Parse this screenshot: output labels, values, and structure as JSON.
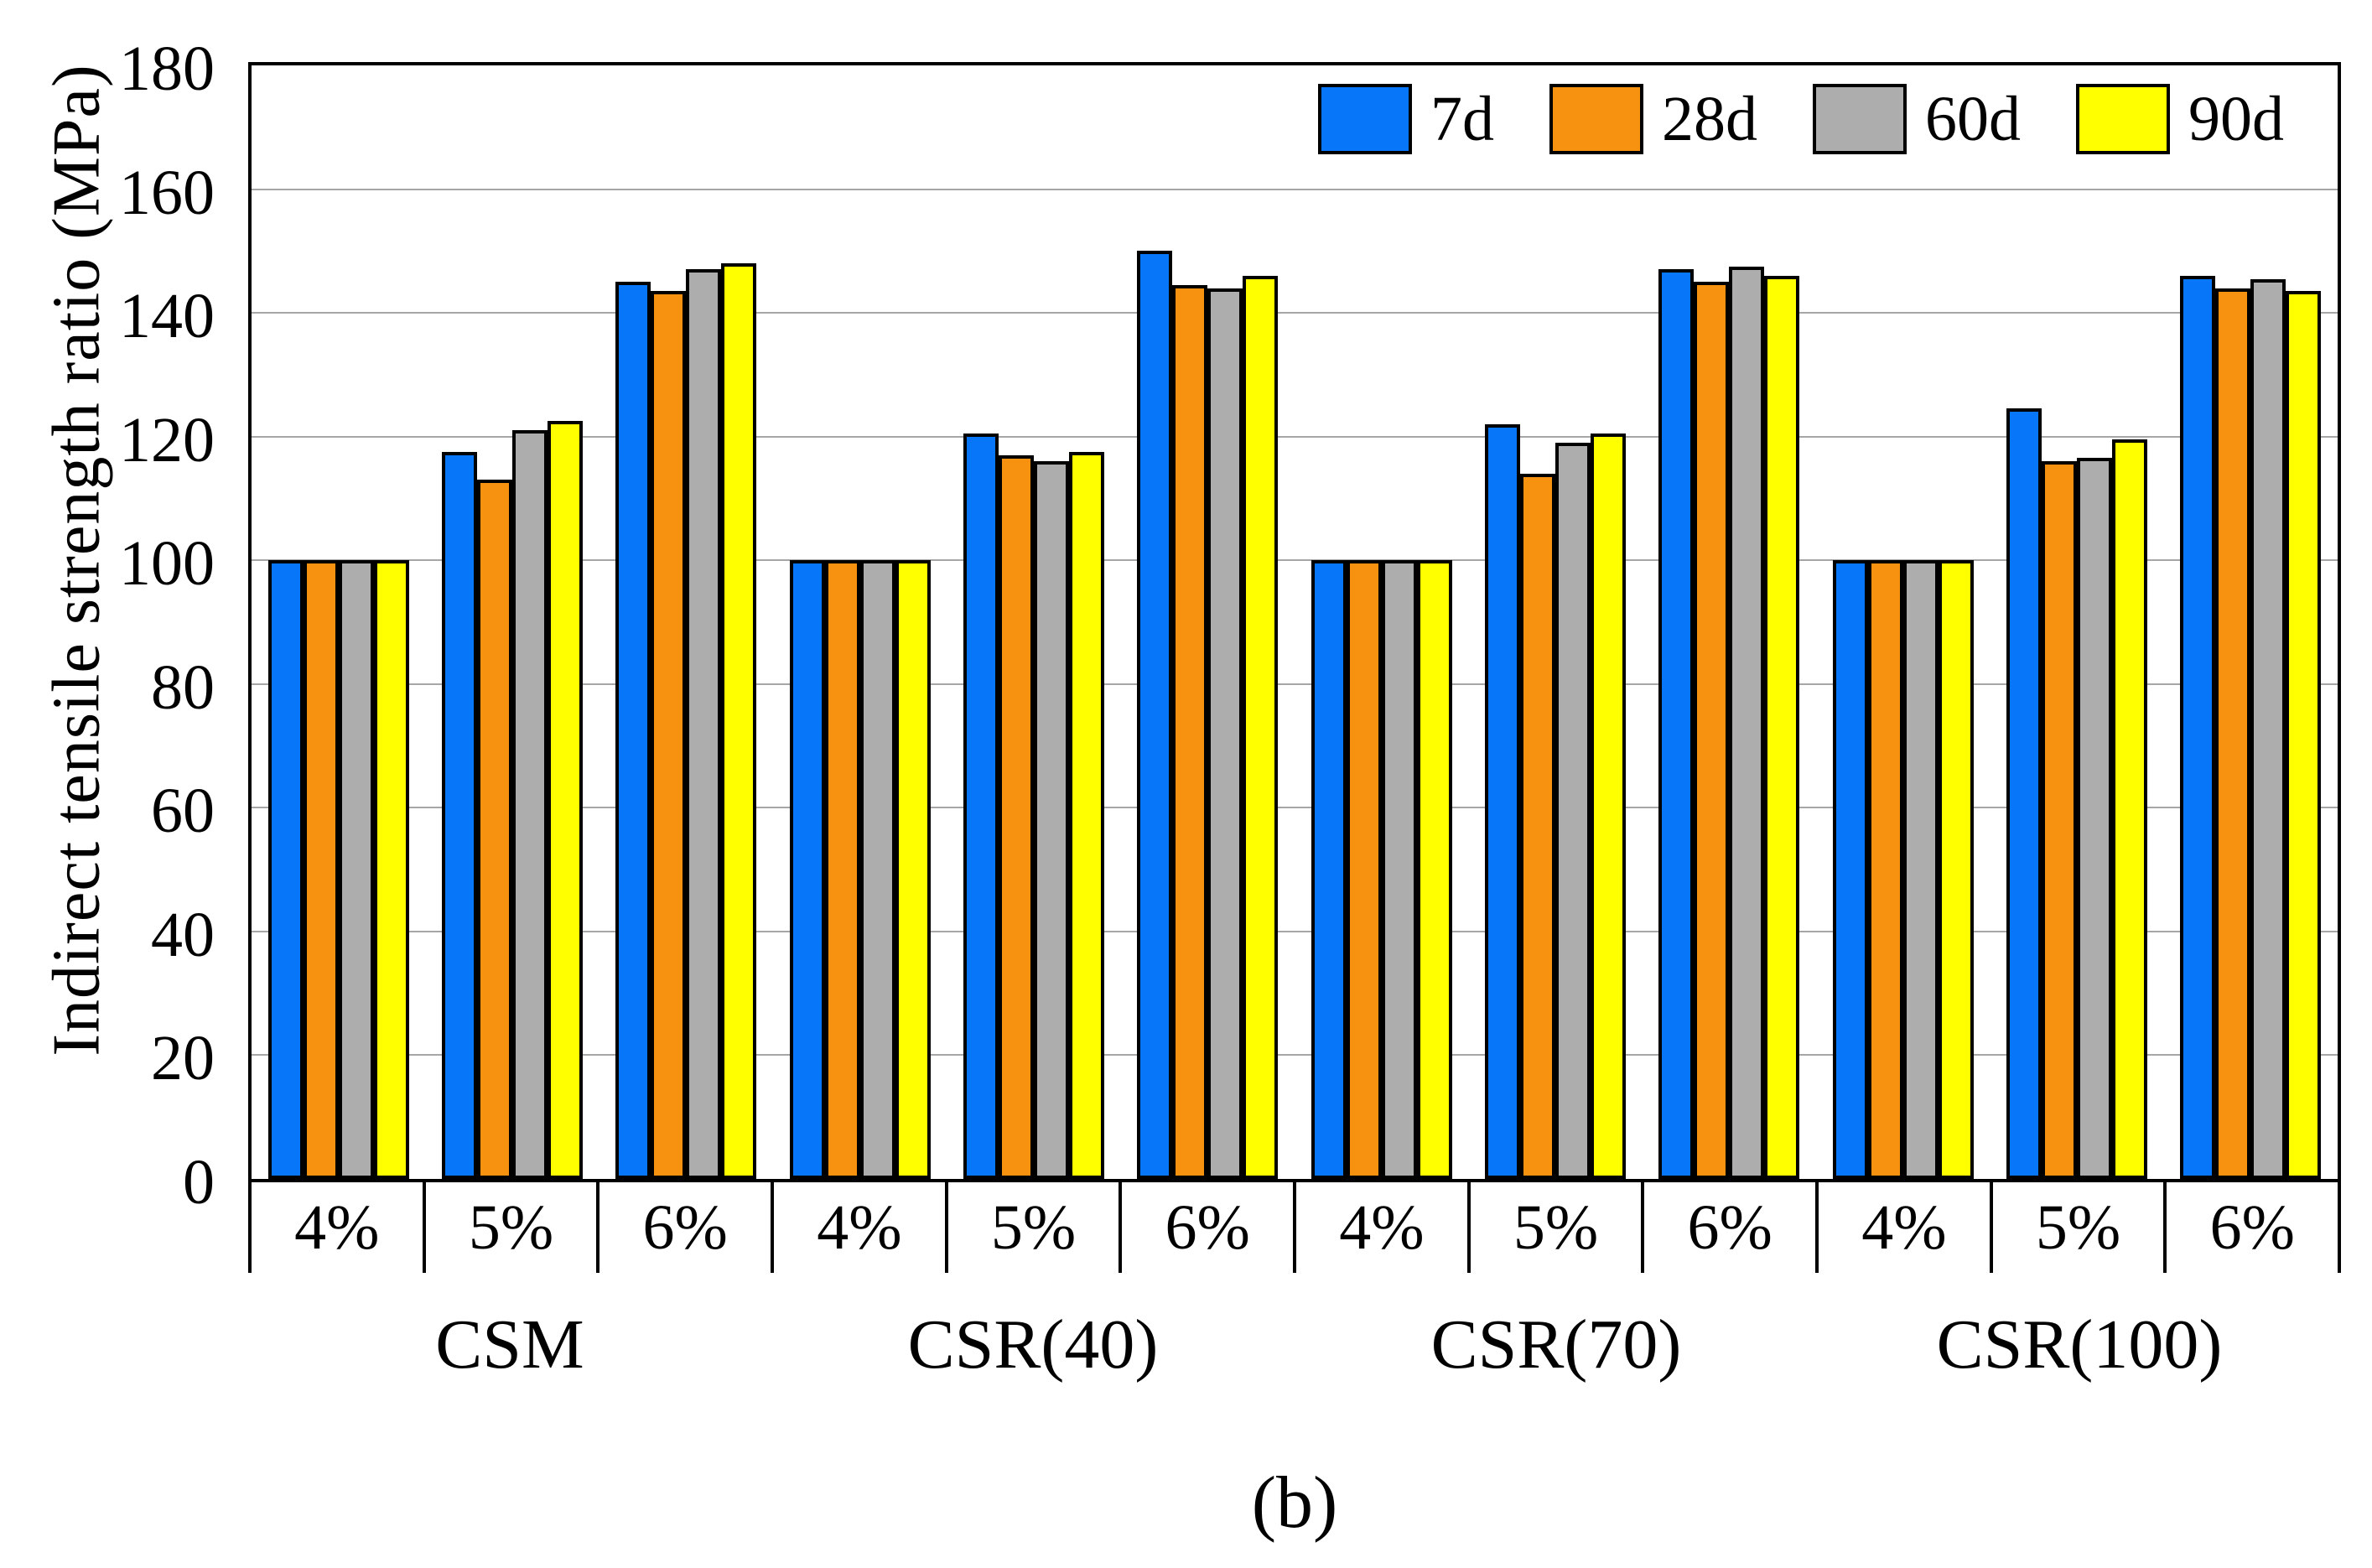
{
  "chart_data": {
    "type": "bar",
    "title": "",
    "ylabel": "Indirect tensile strength ratio (MPa)",
    "xlabel": "",
    "ylim": [
      0,
      180
    ],
    "yticks": [
      0,
      20,
      40,
      60,
      80,
      100,
      120,
      140,
      160,
      180
    ],
    "grid": "horizontal",
    "legend_position": "top-right-inside",
    "caption": "(b)",
    "x_axis": {
      "groups": [
        {
          "label": "CSM",
          "subcategories": [
            "4%",
            "5%",
            "6%"
          ]
        },
        {
          "label": "CSR(40)",
          "subcategories": [
            "4%",
            "5%",
            "6%"
          ]
        },
        {
          "label": "CSR(70)",
          "subcategories": [
            "4%",
            "5%",
            "6%"
          ]
        },
        {
          "label": "CSR(100)",
          "subcategories": [
            "4%",
            "5%",
            "6%"
          ]
        }
      ]
    },
    "categories": [
      "CSM 4%",
      "CSM 5%",
      "CSM 6%",
      "CSR(40) 4%",
      "CSR(40) 5%",
      "CSR(40) 6%",
      "CSR(70) 4%",
      "CSR(70) 5%",
      "CSR(70) 6%",
      "CSR(100) 4%",
      "CSR(100) 5%",
      "CSR(100) 6%"
    ],
    "series": [
      {
        "name": "7d",
        "color": "#0876F8",
        "values": [
          100,
          117.5,
          145,
          100,
          120.5,
          150,
          100,
          122,
          147,
          100,
          124.5,
          146
        ]
      },
      {
        "name": "28d",
        "color": "#F79110",
        "values": [
          100,
          113,
          143.5,
          100,
          117,
          144.5,
          100,
          114,
          145,
          100,
          116,
          144
        ]
      },
      {
        "name": "60d",
        "color": "#ADADAD",
        "values": [
          100,
          121,
          147,
          100,
          116,
          144,
          100,
          119,
          147.5,
          100,
          116.5,
          145.5
        ]
      },
      {
        "name": "90d",
        "color": "#FFFF00",
        "values": [
          100,
          122.5,
          148,
          100,
          117.5,
          146,
          100,
          120.5,
          146,
          100,
          119.5,
          143.5
        ]
      }
    ],
    "colors": {
      "bar_outline": "#000000",
      "gridline": "#a6a6a6",
      "frame": "#000000"
    }
  }
}
